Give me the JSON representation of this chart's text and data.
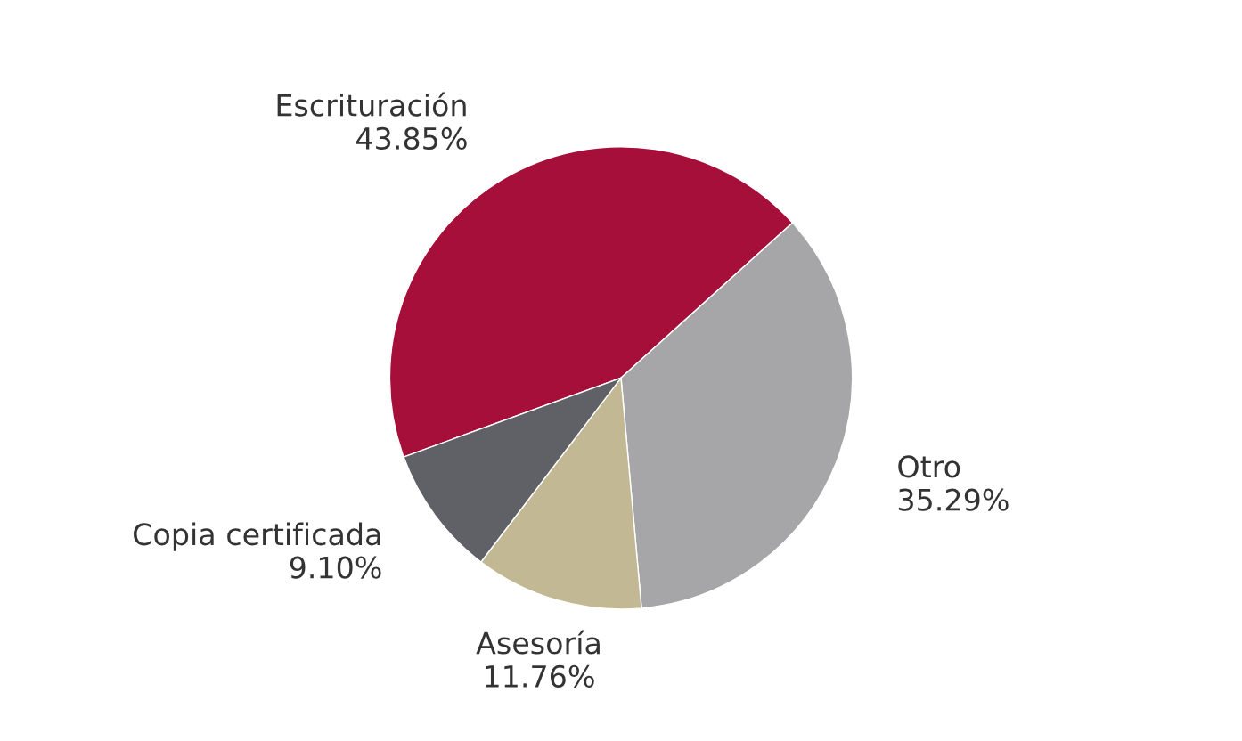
{
  "chart_data": {
    "type": "pie",
    "categories": [
      "Escrituración",
      "Otro",
      "Asesoría",
      "Copia certificada"
    ],
    "values": [
      43.85,
      35.29,
      11.76,
      9.1
    ],
    "value_labels": [
      "43.85%",
      "35.29%",
      "11.76%",
      "9.10%"
    ],
    "colors": [
      "#a50f3a",
      "#a6a6a8",
      "#c2b994",
      "#5f6166"
    ]
  }
}
